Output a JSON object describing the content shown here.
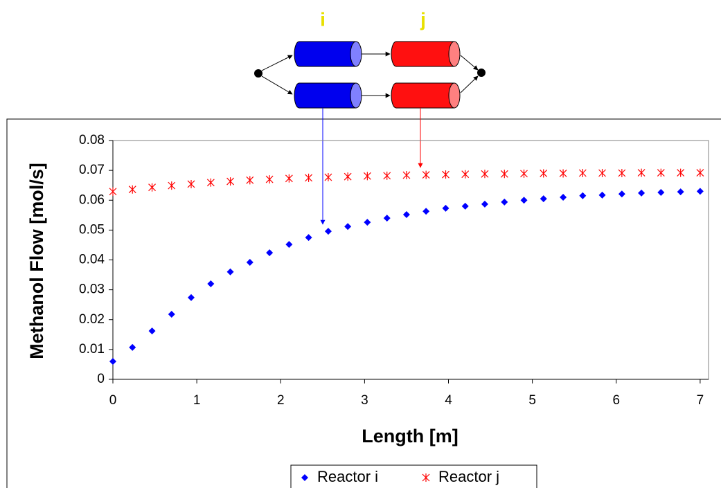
{
  "diagram": {
    "labels": [
      "i",
      "j"
    ]
  },
  "chart_data": {
    "type": "scatter",
    "xlabel": "Length [m]",
    "ylabel": "Methanol Flow [mol/s]",
    "x": [
      0,
      0.233,
      0.467,
      0.7,
      0.933,
      1.167,
      1.4,
      1.633,
      1.867,
      2.1,
      2.333,
      2.567,
      2.8,
      3.033,
      3.267,
      3.5,
      3.733,
      3.967,
      4.2,
      4.433,
      4.667,
      4.9,
      5.133,
      5.367,
      5.6,
      5.833,
      6.067,
      6.3,
      6.533,
      6.767,
      7.0
    ],
    "series": [
      {
        "name": "Reactor i",
        "color": "#0000ff",
        "marker": "diamond",
        "values": [
          0.006,
          0.0107,
          0.0162,
          0.0218,
          0.0274,
          0.032,
          0.036,
          0.0392,
          0.0424,
          0.0452,
          0.0475,
          0.0496,
          0.0512,
          0.0526,
          0.054,
          0.0552,
          0.0563,
          0.0573,
          0.058,
          0.0587,
          0.0594,
          0.06,
          0.0605,
          0.061,
          0.0615,
          0.0617,
          0.0621,
          0.0624,
          0.0626,
          0.0628,
          0.063
        ]
      },
      {
        "name": "Reactor j",
        "color": "#ff0000",
        "marker": "asterisk",
        "values": [
          0.0629,
          0.0636,
          0.0643,
          0.0649,
          0.0654,
          0.0659,
          0.0663,
          0.0667,
          0.067,
          0.0673,
          0.0675,
          0.0677,
          0.0679,
          0.0681,
          0.0682,
          0.0684,
          0.0685,
          0.0686,
          0.0687,
          0.0688,
          0.0688,
          0.0689,
          0.069,
          0.069,
          0.0691,
          0.0691,
          0.0691,
          0.0692,
          0.0692,
          0.0692,
          0.0692
        ]
      }
    ],
    "xlim": [
      0,
      7.1
    ],
    "xticks": [
      0,
      1,
      2,
      3,
      4,
      5,
      6,
      7
    ],
    "ylim": [
      0,
      0.08
    ],
    "yticks": [
      0,
      0.01,
      0.02,
      0.03,
      0.04,
      0.05,
      0.06,
      0.07,
      0.08
    ],
    "legend": "bottom"
  }
}
